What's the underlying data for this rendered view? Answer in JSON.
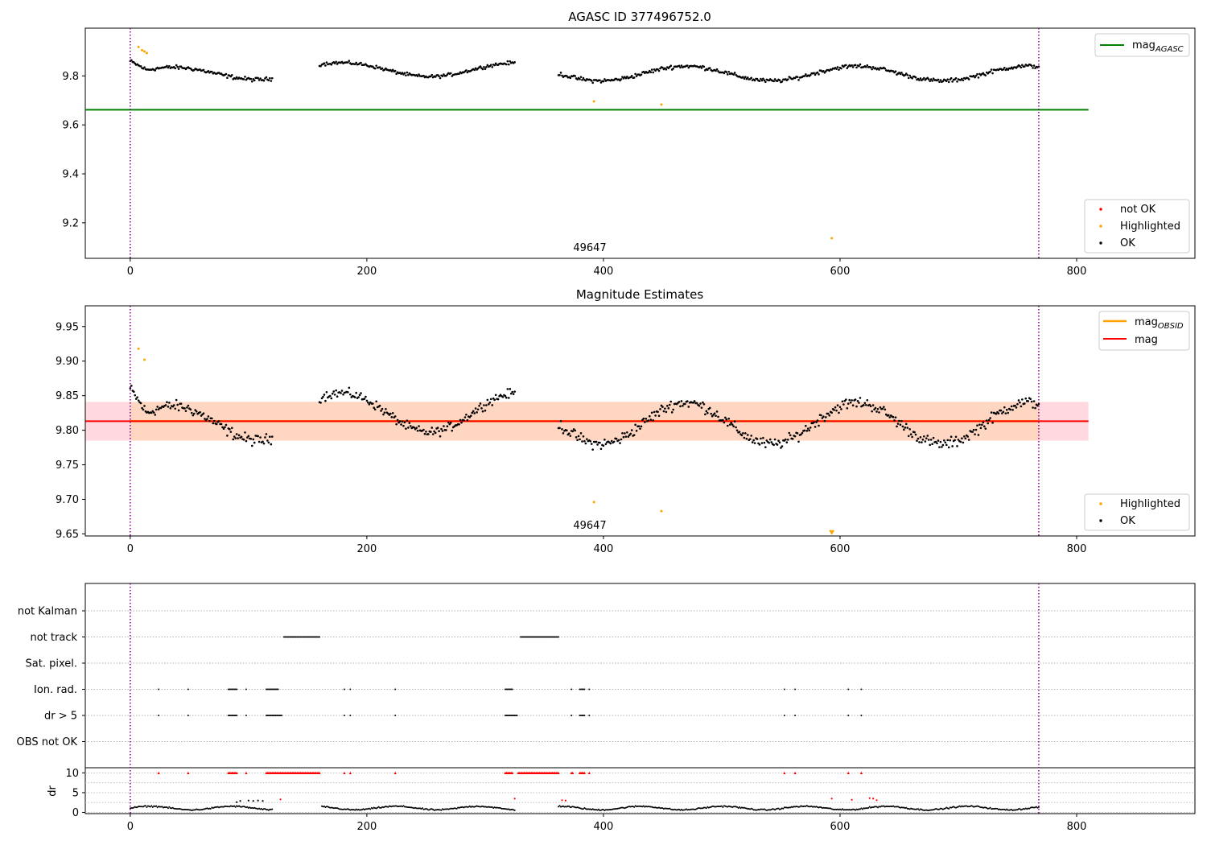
{
  "figure": {
    "title": "AGASC ID 377496752.0"
  },
  "chart_data": [
    {
      "type": "scatter",
      "title": "AGASC ID 377496752.0",
      "xlim": [
        -38,
        900
      ],
      "ylim": [
        9.055,
        9.995
      ],
      "x_ticks": [
        0,
        200,
        400,
        600,
        800
      ],
      "y_ticks": [
        9.2,
        9.4,
        9.6,
        9.8
      ],
      "y_tick_labels": [
        "9.2",
        "9.4",
        "9.6",
        "9.8"
      ],
      "grid": false,
      "legend_upper": {
        "position": "top-right",
        "entries": [
          {
            "label": "mag",
            "subscript": "AGASC",
            "color": "#008000"
          }
        ]
      },
      "legend_lower": {
        "position": "bottom-right",
        "entries": [
          {
            "label": "not OK",
            "color": "#ff0000"
          },
          {
            "label": "Highlighted",
            "color": "#ffa500"
          },
          {
            "label": "OK",
            "color": "#000000"
          }
        ]
      },
      "annotation": "49647",
      "vlines_x": [
        0,
        768
      ],
      "agasc_mag": 9.662,
      "hline_x_range": [
        -38,
        810
      ],
      "segments": [
        {
          "x0": 0,
          "x1": 120,
          "step": 1,
          "base": 9.81,
          "amp": 0.025,
          "noise": 0.012,
          "extra": {
            "x_max": 14,
            "add": 0.05
          }
        },
        {
          "x0": 160,
          "x1": 325,
          "step": 1,
          "base": 9.825,
          "amp": 0.028,
          "noise": 0.01,
          "extra": {
            "x_max": 185,
            "add": 0.03
          }
        },
        {
          "x0": 362,
          "x1": 768,
          "step": 1,
          "base": 9.81,
          "amp": 0.03,
          "noise": 0.012,
          "extra": {
            "x_max": 0,
            "add": 0
          }
        }
      ],
      "highlighted_points": [
        {
          "x": 7,
          "y": 9.918
        },
        {
          "x": 10,
          "y": 9.905
        },
        {
          "x": 12,
          "y": 9.9
        },
        {
          "x": 14,
          "y": 9.893
        },
        {
          "x": 392,
          "y": 9.696
        },
        {
          "x": 449,
          "y": 9.683
        },
        {
          "x": 593,
          "y": 9.137
        }
      ],
      "not_ok_points": []
    },
    {
      "type": "scatter",
      "title": "Magnitude Estimates",
      "xlim": [
        -38,
        900
      ],
      "ylim": [
        9.647,
        9.98
      ],
      "x_ticks": [
        0,
        200,
        400,
        600,
        800
      ],
      "y_ticks": [
        9.65,
        9.7,
        9.75,
        9.8,
        9.85,
        9.9,
        9.95
      ],
      "y_tick_labels": [
        "9.65",
        "9.70",
        "9.75",
        "9.80",
        "9.85",
        "9.90",
        "9.95"
      ],
      "grid": false,
      "legend_upper": {
        "position": "top-right",
        "entries": [
          {
            "label": "mag",
            "subscript": "OBSID",
            "color": "#ffa500"
          },
          {
            "label": "mag",
            "subscript": "",
            "color": "#ff0000"
          }
        ]
      },
      "legend_lower": {
        "position": "bottom-right",
        "entries": [
          {
            "label": "Highlighted",
            "color": "#ffa500"
          },
          {
            "label": "OK",
            "color": "#000000"
          }
        ]
      },
      "annotation": "49647",
      "vlines_x": [
        0,
        768
      ],
      "mag": 9.813,
      "band": [
        9.785,
        9.841
      ],
      "band_x_range": [
        -38,
        810
      ],
      "obsid_mag": {
        "x_range": [
          0,
          768
        ],
        "y": 9.813
      },
      "highlighted_points": [
        {
          "x": 7,
          "y": 9.918
        },
        {
          "x": 12,
          "y": 9.902
        },
        {
          "x": 392,
          "y": 9.696
        },
        {
          "x": 449,
          "y": 9.683
        }
      ],
      "off_scale_marker": {
        "x": 593,
        "y": 9.652
      }
    },
    {
      "type": "scatter",
      "title": "",
      "xlim": [
        -38,
        900
      ],
      "x_ticks": [
        0,
        200,
        400,
        600,
        800
      ],
      "vlines_x": [
        0,
        768
      ],
      "flag_rows": [
        "not Kalman",
        "not track",
        "Sat. pixel.",
        "Ion. rad.",
        "dr > 5",
        "OBS not OK"
      ],
      "flags": {
        "not Kalman": [],
        "not track": [
          [
            130,
            160
          ],
          [
            330,
            362
          ]
        ],
        "Sat. pixel.": [],
        "Ion. rad.": [
          [
            24,
            24
          ],
          [
            49,
            49
          ],
          [
            83,
            90
          ],
          [
            98,
            98
          ],
          [
            115,
            125
          ],
          [
            181,
            181
          ],
          [
            186,
            186
          ],
          [
            224,
            224
          ],
          [
            317,
            323
          ],
          [
            373,
            373
          ],
          [
            380,
            384
          ],
          [
            388,
            388
          ],
          [
            553,
            553
          ],
          [
            562,
            562
          ],
          [
            607,
            607
          ],
          [
            618,
            618
          ]
        ],
        "dr > 5": [
          [
            24,
            24
          ],
          [
            49,
            49
          ],
          [
            83,
            90
          ],
          [
            98,
            98
          ],
          [
            115,
            128
          ],
          [
            181,
            181
          ],
          [
            186,
            186
          ],
          [
            224,
            224
          ],
          [
            317,
            327
          ],
          [
            373,
            373
          ],
          [
            380,
            384
          ],
          [
            388,
            388
          ],
          [
            553,
            553
          ],
          [
            562,
            562
          ],
          [
            607,
            607
          ],
          [
            618,
            618
          ]
        ],
        "OBS not OK": []
      },
      "dr": {
        "ylabel": "dr",
        "ylim": [
          -0.3,
          11.3
        ],
        "y_ticks": [
          0,
          5,
          10
        ],
        "clip_value": 10,
        "clipped": [
          [
            24,
            24
          ],
          [
            49,
            49
          ],
          [
            83,
            90
          ],
          [
            98,
            98
          ],
          [
            115,
            160
          ],
          [
            181,
            181
          ],
          [
            186,
            186
          ],
          [
            224,
            224
          ],
          [
            317,
            323
          ],
          [
            328,
            362
          ],
          [
            373,
            374
          ],
          [
            380,
            384
          ],
          [
            388,
            388
          ],
          [
            553,
            553
          ],
          [
            562,
            562
          ],
          [
            607,
            607
          ],
          [
            618,
            618
          ]
        ],
        "gaps": [
          [
            120,
            162
          ],
          [
            325,
            362
          ]
        ],
        "extra_points": [
          {
            "x": 90,
            "y": 2.6,
            "c": "#000000"
          },
          {
            "x": 93,
            "y": 2.9,
            "c": "#000000"
          },
          {
            "x": 100,
            "y": 3.0,
            "c": "#000000"
          },
          {
            "x": 104,
            "y": 2.9,
            "c": "#000000"
          },
          {
            "x": 108,
            "y": 3.0,
            "c": "#000000"
          },
          {
            "x": 112,
            "y": 2.9,
            "c": "#000000"
          },
          {
            "x": 127,
            "y": 3.3,
            "c": "#ff0000"
          },
          {
            "x": 325,
            "y": 3.5,
            "c": "#ff0000"
          },
          {
            "x": 365,
            "y": 3.1,
            "c": "#ff0000"
          },
          {
            "x": 368,
            "y": 3.0,
            "c": "#ff0000"
          },
          {
            "x": 593,
            "y": 3.5,
            "c": "#ff0000"
          },
          {
            "x": 610,
            "y": 3.2,
            "c": "#ff0000"
          },
          {
            "x": 625,
            "y": 3.6,
            "c": "#ff0000"
          },
          {
            "x": 628,
            "y": 3.5,
            "c": "#ff0000"
          },
          {
            "x": 631,
            "y": 3.1,
            "c": "#ff0000"
          }
        ]
      }
    }
  ],
  "colors": {
    "ok": "#000000",
    "highlighted": "#ffa500",
    "not_ok": "#ff0000",
    "agasc_line": "#008000",
    "mag_line": "#ff0000",
    "obsid_line": "#ffa500",
    "vline": "#800080",
    "band_outer": "#ffd9df",
    "band_inner": "#ffd6c2"
  }
}
